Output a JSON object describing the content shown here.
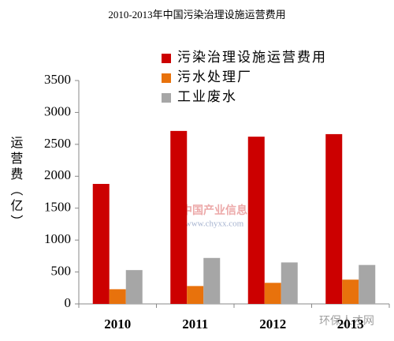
{
  "chart_data": {
    "type": "bar",
    "title": "2010-2013年中国污染治理设施运营费用",
    "y_label": "运营费（亿）",
    "categories": [
      "2010",
      "2011",
      "2012",
      "2013"
    ],
    "series": [
      {
        "name": "污染治理设施运营费用",
        "color": "#cc0000",
        "values": [
          1880,
          2710,
          2620,
          2660
        ]
      },
      {
        "name": "污水处理厂",
        "color": "#e8720c",
        "values": [
          230,
          280,
          330,
          380
        ]
      },
      {
        "name": "工业废水",
        "color": "#a6a6a6",
        "values": [
          530,
          720,
          650,
          610
        ]
      }
    ],
    "ylim": [
      0,
      3500
    ],
    "yticks": [
      0,
      500,
      1000,
      1500,
      2000,
      2500,
      3000,
      3500
    ],
    "legend": "top-right",
    "annotations": [
      "中国产业信息",
      "www.chyxx.com",
      "环保人才网"
    ]
  }
}
